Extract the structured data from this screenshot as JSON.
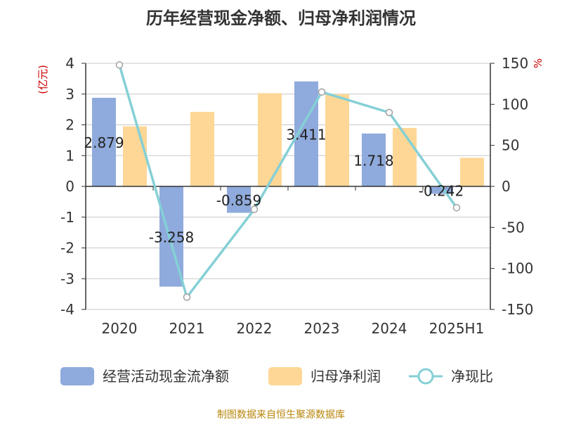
{
  "chart_data": {
    "type": "bar",
    "title": "历年经营现金净额、归母净利润情况",
    "categories": [
      "2020",
      "2021",
      "2022",
      "2023",
      "2024",
      "2025H1"
    ],
    "series": [
      {
        "name": "经营活动现金流净额",
        "kind": "bar",
        "axis": "left",
        "color": "#8faadc",
        "values": [
          2.879,
          -3.258,
          -0.859,
          3.411,
          1.718,
          -0.242
        ],
        "labels": [
          "2.879",
          "-3.258",
          "-0.859",
          "3.411",
          "1.718",
          "-0.242"
        ]
      },
      {
        "name": "归母净利润",
        "kind": "bar",
        "axis": "left",
        "color": "#fed796",
        "values": [
          1.95,
          2.42,
          3.03,
          3.0,
          1.9,
          0.93
        ]
      },
      {
        "name": "净现比",
        "kind": "line",
        "axis": "right",
        "color": "#84d0d6",
        "values": [
          148,
          -135,
          -28,
          115,
          90,
          -26
        ]
      }
    ],
    "y_left": {
      "unit": "(亿元)",
      "range": [
        -4,
        4
      ],
      "ticks": [
        "-4",
        "-3",
        "-2",
        "-1",
        "0",
        "1",
        "2",
        "3",
        "4"
      ]
    },
    "y_right": {
      "unit": "%",
      "range": [
        -150,
        150
      ],
      "ticks": [
        "-150",
        "-100",
        "-50",
        "0",
        "50",
        "100",
        "150"
      ]
    },
    "grid": true,
    "legend_position": "bottom",
    "source": "制图数据来自恒生聚源数据库",
    "title_color": "#333333",
    "unit_color": "#cc0000",
    "source_color": "#b8860b"
  }
}
